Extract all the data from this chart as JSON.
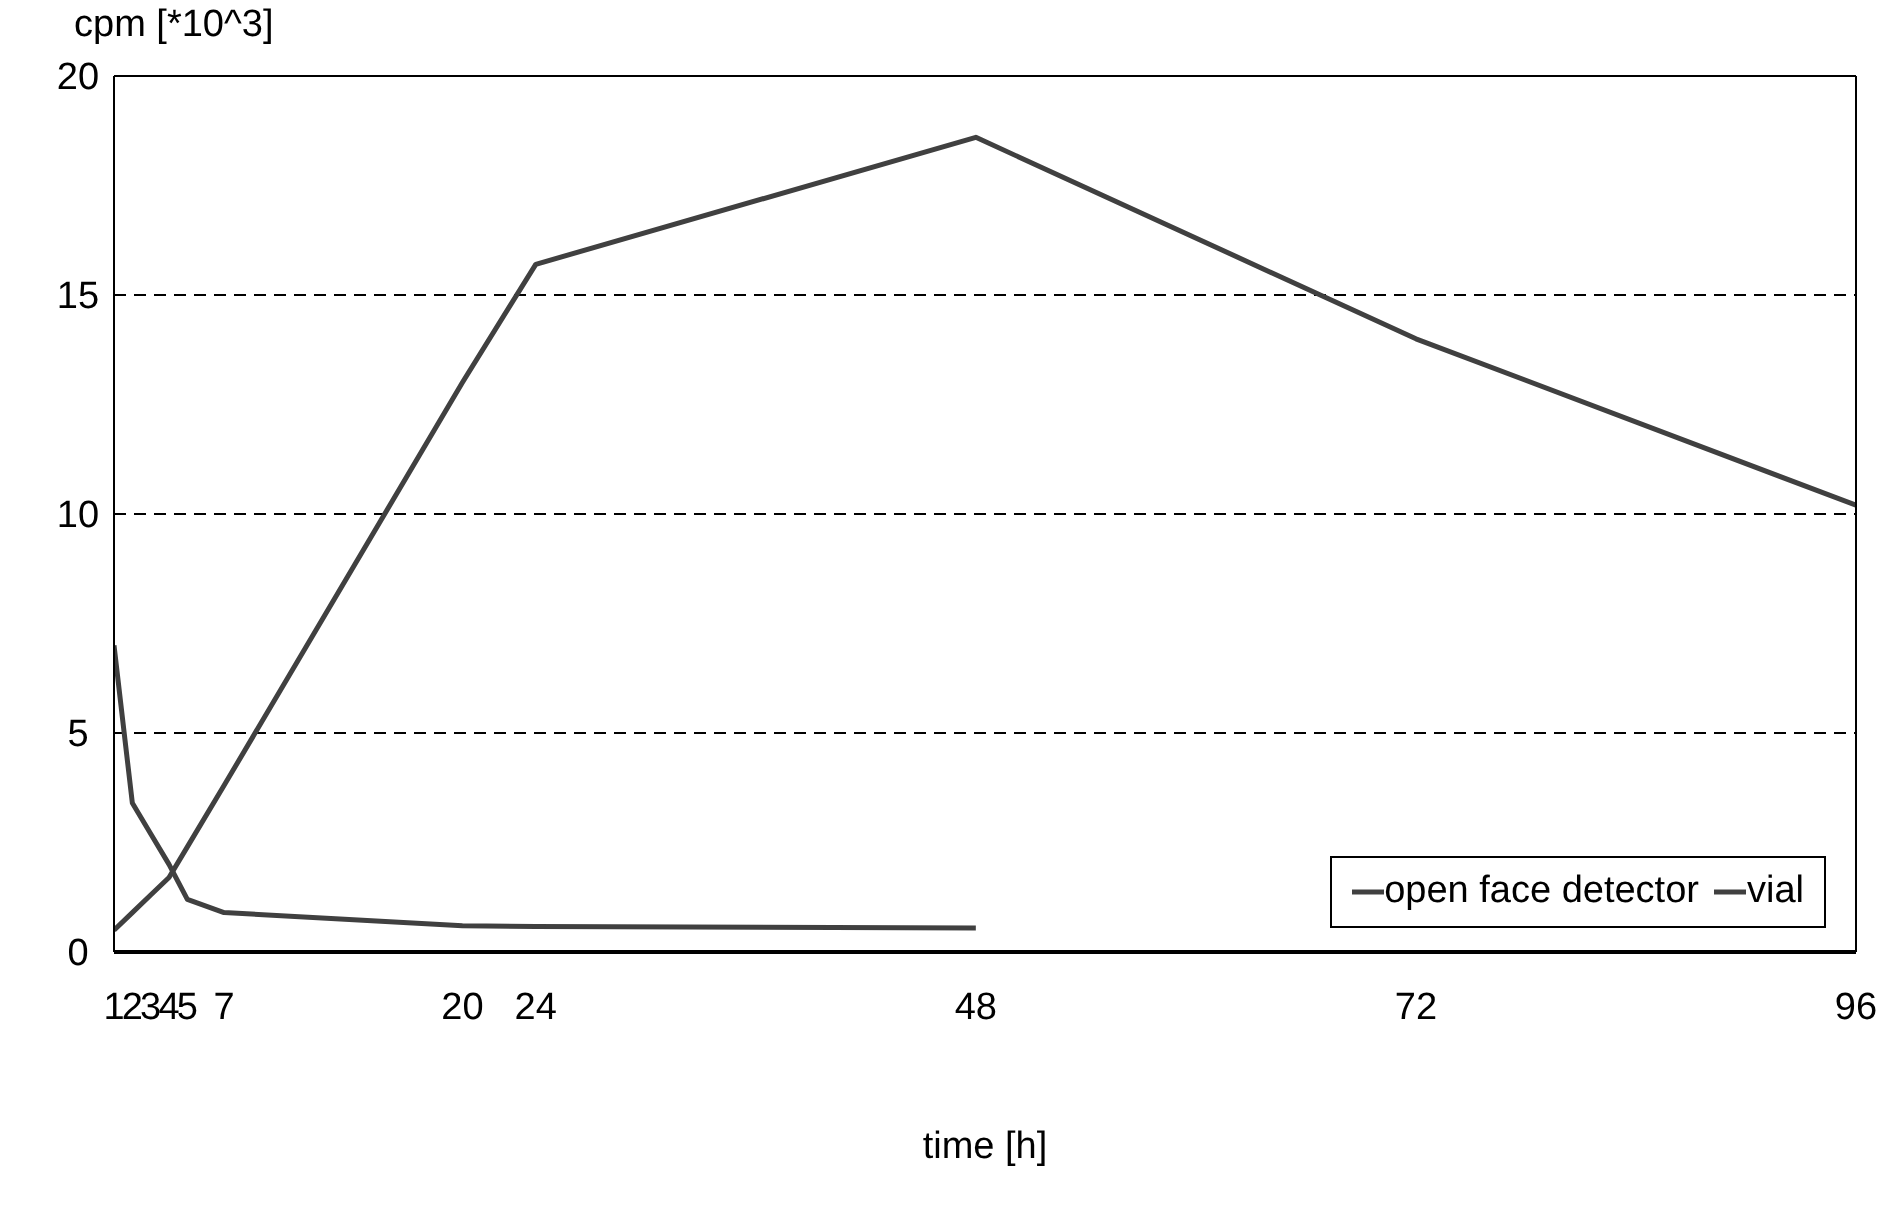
{
  "chart_data": {
    "type": "line",
    "xlabel": "time [h]",
    "ylabel": "cpm [*10^3]",
    "xlim": [
      1,
      96
    ],
    "xticks": [
      1,
      2,
      3,
      4,
      5,
      7,
      20,
      24,
      48,
      72,
      96
    ],
    "ylim": [
      0,
      20
    ],
    "yticks": [
      0,
      5,
      10,
      15,
      20
    ],
    "grid": "y",
    "legend": "bottom right",
    "marker": "none",
    "line_style": "solid",
    "series": [
      {
        "name": "open face detector",
        "color": "#404040",
        "x": [
          1,
          2,
          3,
          4,
          5,
          7,
          20,
          24,
          48,
          72,
          96
        ],
        "values": [
          0.5,
          0.9,
          1.3,
          1.7,
          2.4,
          3.8,
          13.0,
          15.7,
          18.6,
          14.0,
          10.2
        ]
      },
      {
        "name": "vial",
        "color": "#404040",
        "x": [
          1,
          2,
          3,
          4,
          5,
          7,
          20,
          24,
          48
        ],
        "values": [
          7.0,
          3.4,
          2.7,
          2.0,
          1.2,
          0.9,
          0.6,
          0.58,
          0.55
        ]
      }
    ]
  }
}
